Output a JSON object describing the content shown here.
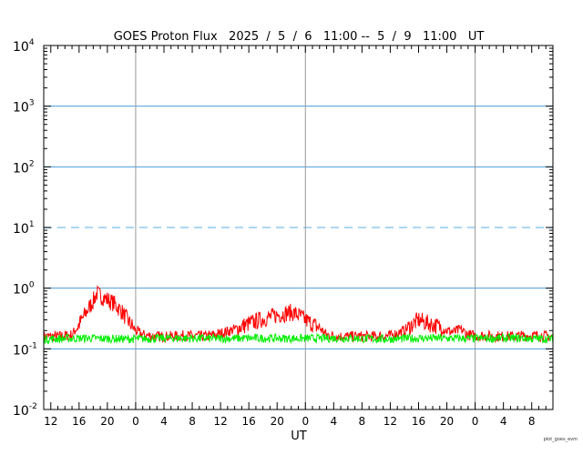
{
  "chart_data": {
    "type": "line",
    "title": "GOES Proton Flux   2025  /  5  /  6   11:00 --  5  /  9   11:00   UT",
    "xlabel": "UT",
    "ylabel": "",
    "credit": "plot_goes_evm",
    "y_scale": "log",
    "ylim": [
      0.01,
      10000
    ],
    "y_tick_labels": [
      {
        "base": "10",
        "exp": "-2",
        "value": 0.01
      },
      {
        "base": "10",
        "exp": "-1",
        "value": 0.1
      },
      {
        "base": "10",
        "exp": "0",
        "value": 1
      },
      {
        "base": "10",
        "exp": "1",
        "value": 10
      },
      {
        "base": "10",
        "exp": "2",
        "value": 100
      },
      {
        "base": "10",
        "exp": "3",
        "value": 1000
      },
      {
        "base": "10",
        "exp": "4",
        "value": 10000
      }
    ],
    "x_range_hours": [
      0,
      72
    ],
    "x_tick_labels": [
      {
        "t": 1,
        "label": "12"
      },
      {
        "t": 5,
        "label": "16"
      },
      {
        "t": 9,
        "label": "20"
      },
      {
        "t": 13,
        "label": "0"
      },
      {
        "t": 17,
        "label": "4"
      },
      {
        "t": 21,
        "label": "8"
      },
      {
        "t": 25,
        "label": "12"
      },
      {
        "t": 29,
        "label": "16"
      },
      {
        "t": 33,
        "label": "20"
      },
      {
        "t": 37,
        "label": "0"
      },
      {
        "t": 41,
        "label": "4"
      },
      {
        "t": 45,
        "label": "8"
      },
      {
        "t": 49,
        "label": "12"
      },
      {
        "t": 53,
        "label": "16"
      },
      {
        "t": 57,
        "label": "20"
      },
      {
        "t": 61,
        "label": "0"
      },
      {
        "t": 65,
        "label": "4"
      },
      {
        "t": 69,
        "label": "8"
      }
    ],
    "day_boundaries_hours": [
      13,
      37,
      61
    ],
    "horizontal_grid": [
      0.1,
      1,
      1000,
      100
    ],
    "threshold_line": 10,
    "grid_color": "#4a9fe0",
    "threshold_color": "#8ec8f0",
    "day_line_color": "#999999",
    "series": [
      {
        "color": "#ff0000",
        "points": [
          [
            0,
            0.16
          ],
          [
            2,
            0.16
          ],
          [
            4,
            0.17
          ],
          [
            5,
            0.25
          ],
          [
            6,
            0.4
          ],
          [
            7,
            0.62
          ],
          [
            7.5,
            0.82
          ],
          [
            8,
            0.75
          ],
          [
            9,
            0.65
          ],
          [
            10,
            0.55
          ],
          [
            11,
            0.42
          ],
          [
            12,
            0.28
          ],
          [
            13,
            0.2
          ],
          [
            14,
            0.17
          ],
          [
            16,
            0.16
          ],
          [
            18,
            0.16
          ],
          [
            20,
            0.165
          ],
          [
            23,
            0.16
          ],
          [
            25,
            0.18
          ],
          [
            27,
            0.21
          ],
          [
            29,
            0.26
          ],
          [
            31,
            0.31
          ],
          [
            33,
            0.36
          ],
          [
            35,
            0.4
          ],
          [
            36,
            0.36
          ],
          [
            37,
            0.3
          ],
          [
            39,
            0.22
          ],
          [
            40,
            0.17
          ],
          [
            42,
            0.16
          ],
          [
            46,
            0.16
          ],
          [
            49,
            0.165
          ],
          [
            51,
            0.2
          ],
          [
            53,
            0.3
          ],
          [
            54,
            0.27
          ],
          [
            55,
            0.25
          ],
          [
            56,
            0.23
          ],
          [
            57,
            0.2
          ],
          [
            58,
            0.19
          ],
          [
            59,
            0.21
          ],
          [
            60,
            0.17
          ],
          [
            61,
            0.165
          ],
          [
            65,
            0.16
          ],
          [
            69,
            0.165
          ],
          [
            72,
            0.16
          ]
        ]
      },
      {
        "color": "#00ee00",
        "points": [
          [
            0,
            0.145
          ],
          [
            6,
            0.15
          ],
          [
            12,
            0.145
          ],
          [
            18,
            0.15
          ],
          [
            24,
            0.148
          ],
          [
            30,
            0.15
          ],
          [
            36,
            0.148
          ],
          [
            42,
            0.15
          ],
          [
            48,
            0.145
          ],
          [
            54,
            0.15
          ],
          [
            60,
            0.148
          ],
          [
            66,
            0.15
          ],
          [
            72,
            0.145
          ]
        ]
      }
    ]
  }
}
